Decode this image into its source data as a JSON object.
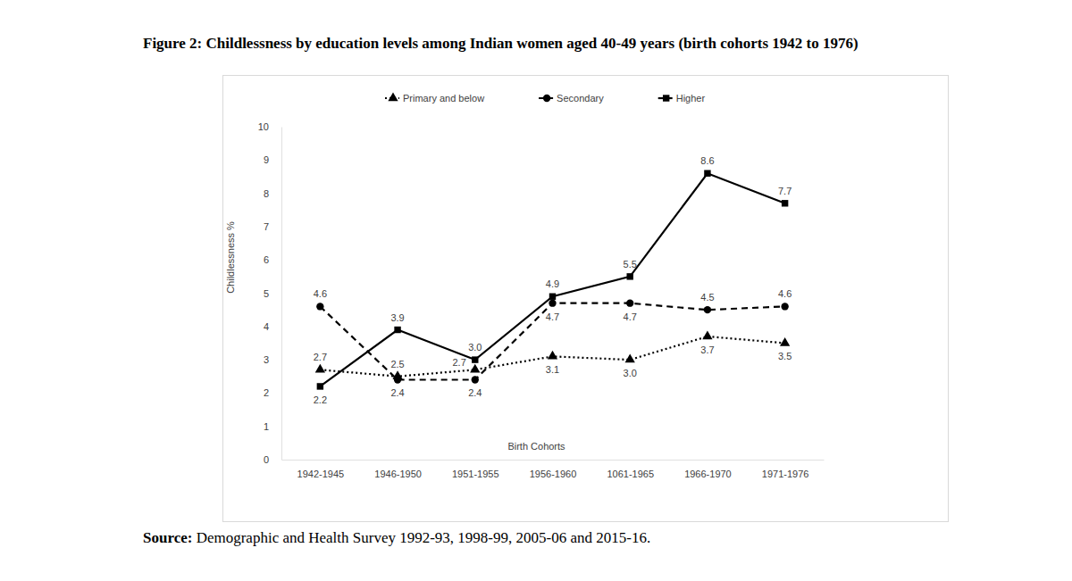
{
  "chart_data": {
    "type": "line",
    "title": "Figure 2: Childlessness by education levels among Indian women aged 40-49 years (birth cohorts 1942 to 1976)",
    "source_label": "Source:",
    "source": "Demographic and Health Survey 1992-93, 1998-99, 2005-06 and 2015-16.",
    "x_label": "Birth Cohorts",
    "y_label": "Childlessness %",
    "categories": [
      "1942-1945",
      "1946-1950",
      "1951-1955",
      "1956-1960",
      "1061-1965",
      "1966-1970",
      "1971-1976"
    ],
    "series": [
      {
        "name": "Primary and below",
        "color": "#000000",
        "marker": "triangle",
        "line_style": "dotted",
        "values": [
          2.7,
          2.5,
          2.7,
          3.1,
          3.0,
          3.7,
          3.5
        ],
        "value_labels": [
          "2.7",
          "2.5",
          "2.7",
          "3.1",
          "3.0",
          "3.7",
          "3.5"
        ]
      },
      {
        "name": "Secondary",
        "color": "#000000",
        "marker": "circle",
        "line_style": "dashed",
        "values": [
          4.6,
          2.4,
          2.4,
          4.7,
          4.7,
          4.5,
          4.6
        ],
        "value_labels": [
          "4.6",
          "2.4",
          "2.4",
          "4.7",
          "4.7",
          "4.5",
          "4.6"
        ]
      },
      {
        "name": "Higher",
        "color": "#000000",
        "marker": "square",
        "line_style": "solid",
        "values": [
          2.2,
          3.9,
          3.0,
          4.9,
          5.5,
          8.6,
          7.7
        ],
        "value_labels": [
          "2.2",
          "3.9",
          "3.0",
          "4.9",
          "5.5",
          "8.6",
          "7.7"
        ]
      }
    ],
    "ylim": [
      0,
      10
    ],
    "yticks": [
      0,
      1,
      2,
      3,
      4,
      5,
      6,
      7,
      8,
      9,
      10
    ],
    "grid": false,
    "legend": "top",
    "data_labels": true
  }
}
